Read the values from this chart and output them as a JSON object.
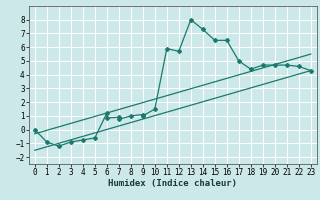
{
  "title": "",
  "xlabel": "Humidex (Indice chaleur)",
  "bg_color": "#cce8e8",
  "grid_color": "#ffffff",
  "line_color": "#1a7a6e",
  "xlim": [
    -0.5,
    23.5
  ],
  "ylim": [
    -2.5,
    9.0
  ],
  "yticks": [
    -2,
    -1,
    0,
    1,
    2,
    3,
    4,
    5,
    6,
    7,
    8
  ],
  "xticks": [
    0,
    1,
    2,
    3,
    4,
    5,
    6,
    7,
    8,
    9,
    10,
    11,
    12,
    13,
    14,
    15,
    16,
    17,
    18,
    19,
    20,
    21,
    22,
    23
  ],
  "main_series_x": [
    0,
    1,
    2,
    3,
    4,
    5,
    6,
    6,
    7,
    7,
    8,
    9,
    9,
    10,
    11,
    12,
    13,
    14,
    15,
    16,
    17,
    18,
    19,
    20,
    21,
    22,
    23
  ],
  "main_series_y": [
    0.0,
    -0.9,
    -1.2,
    -0.9,
    -0.75,
    -0.6,
    1.2,
    0.85,
    0.9,
    0.75,
    1.0,
    1.1,
    1.0,
    1.5,
    5.9,
    5.7,
    8.0,
    7.3,
    6.5,
    6.5,
    5.0,
    4.4,
    4.7,
    4.7,
    4.7,
    4.6,
    4.3
  ],
  "reg_line1_x": [
    0,
    23
  ],
  "reg_line1_y": [
    -1.5,
    4.3
  ],
  "reg_line2_x": [
    0,
    23
  ],
  "reg_line2_y": [
    -0.3,
    5.5
  ]
}
